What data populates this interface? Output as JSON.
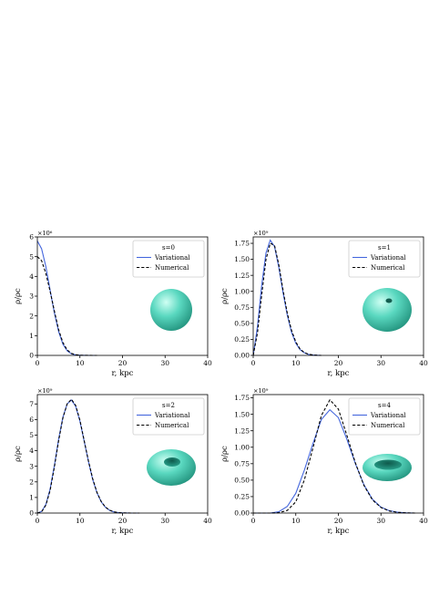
{
  "colors": {
    "variational": "#4466dd",
    "numerical": "#000000",
    "torus": "#5ad8c0",
    "torus_dark": "#1f8f7a"
  },
  "chart_data": [
    {
      "type": "line",
      "panel_label": "s=0",
      "scale_label": "×10⁶",
      "xlabel": "r, kpc",
      "ylabel": "ρ/ρc",
      "xlim": [
        0,
        40
      ],
      "ylim": [
        0,
        6
      ],
      "xticks": [
        0,
        10,
        20,
        30,
        40
      ],
      "yticks": [
        0,
        1,
        2,
        3,
        4,
        5,
        6
      ],
      "legend": {
        "title": "s=0",
        "position": "top-right"
      },
      "icon": "sphere",
      "series": [
        {
          "name": "Variational",
          "style": "solid",
          "color": "#4466dd",
          "x": [
            0,
            1,
            2,
            3,
            4,
            5,
            6,
            7,
            8,
            9,
            10,
            11,
            12,
            13,
            14
          ],
          "y": [
            5.8,
            5.4,
            4.5,
            3.3,
            2.15,
            1.2,
            0.57,
            0.23,
            0.08,
            0.025,
            0.007,
            0.002,
            0.0,
            0.0,
            0.0
          ]
        },
        {
          "name": "Numerical",
          "style": "dashed",
          "color": "#000000",
          "x": [
            0,
            1,
            2,
            3,
            4,
            5,
            6,
            7,
            8,
            9,
            10,
            11,
            12,
            13,
            14
          ],
          "y": [
            5.0,
            4.8,
            4.15,
            3.25,
            2.25,
            1.3,
            0.65,
            0.28,
            0.1,
            0.035,
            0.012,
            0.004,
            0.001,
            0.0,
            0.0
          ]
        }
      ]
    },
    {
      "type": "line",
      "panel_label": "s=1",
      "scale_label": "×10⁹",
      "xlabel": "r, kpc",
      "ylabel": "ρ/ρc",
      "xlim": [
        0,
        40
      ],
      "ylim": [
        0,
        1.85
      ],
      "xticks": [
        0,
        10,
        20,
        30,
        40
      ],
      "yticks": [
        "0.00",
        "0.25",
        "0.50",
        "0.75",
        "1.00",
        "1.25",
        "1.50",
        "1.75"
      ],
      "legend": {
        "title": "s=1",
        "position": "top-right"
      },
      "icon": "sphere-dimple",
      "series": [
        {
          "name": "Variational",
          "style": "solid",
          "color": "#4466dd",
          "x": [
            0,
            1,
            2,
            3,
            4,
            5,
            6,
            7,
            8,
            9,
            10,
            11,
            12,
            13,
            14,
            15,
            16
          ],
          "y": [
            0.0,
            0.45,
            1.1,
            1.6,
            1.8,
            1.7,
            1.38,
            0.98,
            0.63,
            0.36,
            0.19,
            0.09,
            0.04,
            0.015,
            0.006,
            0.002,
            0.0
          ]
        },
        {
          "name": "Numerical",
          "style": "dashed",
          "color": "#000000",
          "x": [
            0,
            1,
            2,
            3,
            4,
            5,
            6,
            7,
            8,
            9,
            10,
            11,
            12,
            13,
            14,
            15,
            16
          ],
          "y": [
            0.0,
            0.35,
            0.95,
            1.5,
            1.75,
            1.72,
            1.42,
            1.02,
            0.66,
            0.39,
            0.21,
            0.1,
            0.045,
            0.018,
            0.007,
            0.002,
            0.0
          ]
        }
      ]
    },
    {
      "type": "line",
      "panel_label": "s=2",
      "scale_label": "×10⁹",
      "xlabel": "r, kpc",
      "ylabel": "ρ/ρc",
      "xlim": [
        0,
        40
      ],
      "ylim": [
        0,
        7.6
      ],
      "xticks": [
        0,
        10,
        20,
        30,
        40
      ],
      "yticks": [
        0,
        1,
        2,
        3,
        4,
        5,
        6,
        7
      ],
      "legend": {
        "title": "s=2",
        "position": "top-right"
      },
      "icon": "torus-thick",
      "series": [
        {
          "name": "Variational",
          "style": "solid",
          "color": "#4466dd",
          "x": [
            0,
            1,
            2,
            3,
            4,
            5,
            6,
            7,
            8,
            9,
            10,
            11,
            12,
            13,
            14,
            15,
            16,
            17,
            18,
            19,
            20,
            22,
            24
          ],
          "y": [
            0.0,
            0.1,
            0.55,
            1.55,
            3.05,
            4.75,
            6.15,
            7.0,
            7.25,
            6.85,
            5.9,
            4.6,
            3.3,
            2.15,
            1.3,
            0.72,
            0.37,
            0.17,
            0.07,
            0.03,
            0.01,
            0.0,
            0.0
          ]
        },
        {
          "name": "Numerical",
          "style": "dashed",
          "color": "#000000",
          "x": [
            0,
            1,
            2,
            3,
            4,
            5,
            6,
            7,
            8,
            9,
            10,
            11,
            12,
            13,
            14,
            15,
            16,
            17,
            18,
            19,
            20,
            22,
            24
          ],
          "y": [
            0.0,
            0.08,
            0.5,
            1.45,
            2.95,
            4.65,
            6.1,
            7.0,
            7.3,
            6.9,
            5.95,
            4.65,
            3.35,
            2.2,
            1.33,
            0.74,
            0.38,
            0.18,
            0.08,
            0.03,
            0.01,
            0.0,
            0.0
          ]
        }
      ]
    },
    {
      "type": "line",
      "panel_label": "s=4",
      "scale_label": "×10⁹",
      "xlabel": "r, kpc",
      "ylabel": "ρ/ρc",
      "xlim": [
        0,
        40
      ],
      "ylim": [
        0,
        1.8
      ],
      "xticks": [
        0,
        10,
        20,
        30,
        40
      ],
      "yticks": [
        "0.00",
        "0.25",
        "0.50",
        "0.75",
        "1.00",
        "1.25",
        "1.50",
        "1.75"
      ],
      "legend": {
        "title": "s=4",
        "position": "top-right"
      },
      "icon": "torus-thin",
      "series": [
        {
          "name": "Variational",
          "style": "solid",
          "color": "#4466dd",
          "x": [
            0,
            4,
            6,
            8,
            10,
            12,
            14,
            16,
            18,
            20,
            22,
            24,
            26,
            28,
            30,
            32,
            34,
            36,
            38
          ],
          "y": [
            0.0,
            0.0,
            0.02,
            0.1,
            0.3,
            0.65,
            1.05,
            1.42,
            1.57,
            1.45,
            1.12,
            0.75,
            0.43,
            0.21,
            0.09,
            0.035,
            0.012,
            0.003,
            0.0
          ]
        },
        {
          "name": "Numerical",
          "style": "dashed",
          "color": "#000000",
          "x": [
            0,
            4,
            6,
            8,
            10,
            12,
            14,
            16,
            18,
            20,
            22,
            24,
            26,
            28,
            30,
            32,
            34,
            36,
            38
          ],
          "y": [
            0.0,
            0.0,
            0.005,
            0.04,
            0.17,
            0.5,
            0.98,
            1.48,
            1.72,
            1.58,
            1.18,
            0.76,
            0.42,
            0.2,
            0.085,
            0.03,
            0.01,
            0.003,
            0.0
          ]
        }
      ]
    }
  ]
}
